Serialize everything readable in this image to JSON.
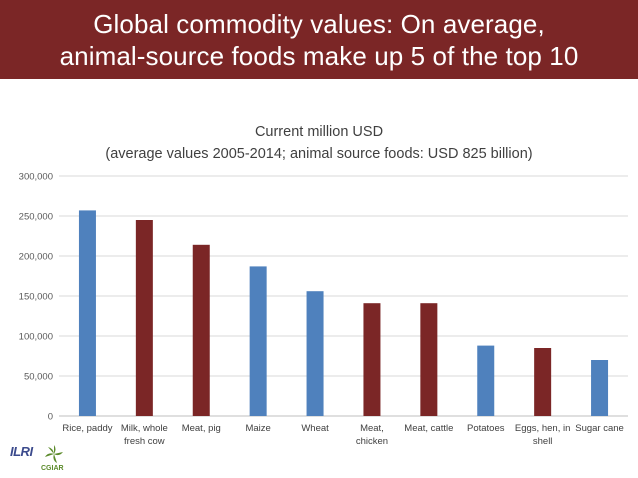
{
  "header": {
    "title_line1": "Global commodity values: On average,",
    "title_line2": "animal-source foods make up 5 of the top 10"
  },
  "chart_data": {
    "type": "bar",
    "title": "Current million USD",
    "subtitle": "(average values 2005-2014; animal source foods: USD 825 billion)",
    "xlabel": "",
    "ylabel": "",
    "ylim": [
      0,
      300000
    ],
    "yticks": [
      0,
      50000,
      100000,
      150000,
      200000,
      250000,
      300000
    ],
    "ytick_labels": [
      "0",
      "50,000",
      "100,000",
      "150,000",
      "200,000",
      "250,000",
      "300,000"
    ],
    "grid": true,
    "categories": [
      [
        "Rice, paddy"
      ],
      [
        "Milk, whole",
        "fresh cow"
      ],
      [
        "Meat, pig"
      ],
      [
        "Maize"
      ],
      [
        "Wheat"
      ],
      [
        "Meat,",
        "chicken"
      ],
      [
        "Meat, cattle"
      ],
      [
        "Potatoes"
      ],
      [
        "Eggs, hen, in",
        "shell"
      ],
      [
        "Sugar cane"
      ]
    ],
    "values": [
      257000,
      245000,
      214000,
      187000,
      156000,
      141000,
      141000,
      88000,
      85000,
      70000
    ],
    "group": [
      "plant",
      "animal",
      "animal",
      "plant",
      "plant",
      "animal",
      "animal",
      "plant",
      "animal",
      "plant"
    ],
    "colors": {
      "plant": "#4f81bd",
      "animal": "#7b2626"
    }
  },
  "logos": {
    "ilri": "ILRI",
    "cgiar": "CGIAR"
  }
}
